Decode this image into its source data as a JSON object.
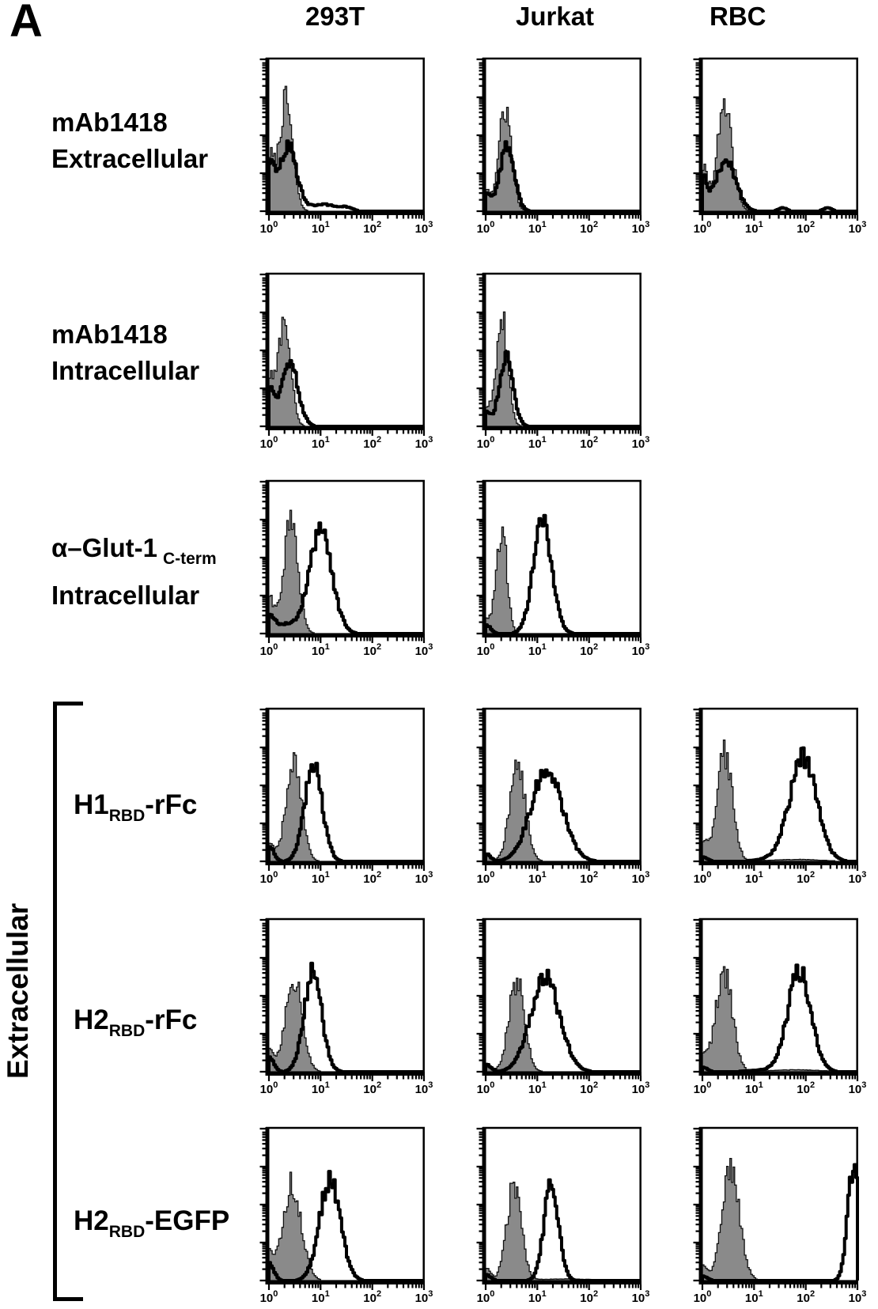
{
  "figure": {
    "panel_letter": "A"
  },
  "colors": {
    "background": "#ffffff",
    "histogram_fill": "#8a8a8a",
    "histogram_fill_edge": "#111111",
    "histogram_outline": "#000000",
    "axis": "#000000"
  },
  "chart_data": {
    "type": "flow-cytometry-histogram-grid",
    "x_scale": "log10",
    "x_range_log10": [
      0,
      3
    ],
    "x_tick_base": "10",
    "x_tick_exponents": [
      0,
      1,
      2,
      3
    ],
    "y_axis_label": "",
    "grid": false,
    "legend": "none",
    "columns": [
      "293T",
      "Jurkat",
      "RBC"
    ],
    "group_label": "Extracellular",
    "rows": [
      {
        "line1": "mAb1418",
        "line2": "Extracellular"
      },
      {
        "line1": "mAb1418",
        "line2": "Intracellular"
      },
      {
        "line1": "α–Glut-1",
        "line1_sub": "C-term",
        "line2": "Intracellular"
      },
      {
        "pre": "H1",
        "sub": "RBD",
        "post": "-rFc"
      },
      {
        "pre": "H2",
        "sub": "RBD",
        "post": "-rFc"
      },
      {
        "pre": "H2",
        "sub": "RBD",
        "post": "-EGFP"
      }
    ],
    "series_legend": {
      "filled": "shaded control histogram",
      "open": "open (bold line) stain histogram"
    },
    "panels": [
      {
        "row": 0,
        "col": 0,
        "series": [
          {
            "name": "control-shaded",
            "mu": 0.33,
            "sigma": 0.13,
            "height": 0.72,
            "edge": 0.35
          },
          {
            "name": "stain-open",
            "mu": 0.36,
            "sigma": 0.17,
            "height": 0.43,
            "edge": 0.28,
            "tails": [
              {
                "mu": 1.05,
                "sig": 0.25,
                "h": 0.045
              },
              {
                "mu": 1.5,
                "sig": 0.12,
                "h": 0.02
              }
            ]
          }
        ]
      },
      {
        "row": 0,
        "col": 1,
        "series": [
          {
            "name": "control-shaded",
            "mu": 0.38,
            "sigma": 0.12,
            "height": 0.68,
            "edge": 0.15
          },
          {
            "name": "stain-open",
            "mu": 0.41,
            "sigma": 0.14,
            "height": 0.43,
            "edge": 0.12
          }
        ]
      },
      {
        "row": 0,
        "col": 2,
        "series": [
          {
            "name": "control-shaded",
            "mu": 0.43,
            "sigma": 0.15,
            "height": 0.66,
            "edge": 0.28
          },
          {
            "name": "stain-open",
            "mu": 0.46,
            "sigma": 0.19,
            "height": 0.34,
            "edge": 0.22,
            "tails": [
              {
                "mu": 1.55,
                "sig": 0.08,
                "h": 0.022
              },
              {
                "mu": 2.42,
                "sig": 0.08,
                "h": 0.022
              }
            ]
          }
        ]
      },
      {
        "row": 1,
        "col": 0,
        "series": [
          {
            "name": "control-shaded",
            "mu": 0.3,
            "sigma": 0.12,
            "height": 0.7,
            "edge": 0.3
          },
          {
            "name": "stain-open",
            "mu": 0.4,
            "sigma": 0.16,
            "height": 0.42,
            "edge": 0.25
          }
        ]
      },
      {
        "row": 1,
        "col": 1,
        "series": [
          {
            "name": "control-shaded",
            "mu": 0.32,
            "sigma": 0.11,
            "height": 0.72,
            "edge": 0.12
          },
          {
            "name": "stain-open",
            "mu": 0.4,
            "sigma": 0.13,
            "height": 0.46,
            "edge": 0.1
          }
        ]
      },
      {
        "row": 2,
        "col": 0,
        "series": [
          {
            "name": "control-shaded",
            "mu": 0.42,
            "sigma": 0.14,
            "height": 0.72,
            "edge": 0.25
          },
          {
            "name": "stain-open",
            "mu": 1.0,
            "sigma": 0.22,
            "height": 0.66,
            "edge": 0.1,
            "tails": [
              {
                "mu": 0.3,
                "sig": 0.25,
                "h": 0.06
              }
            ]
          }
        ]
      },
      {
        "row": 2,
        "col": 1,
        "series": [
          {
            "name": "control-shaded",
            "mu": 0.31,
            "sigma": 0.1,
            "height": 0.7,
            "edge": 0.1
          },
          {
            "name": "stain-open",
            "mu": 1.1,
            "sigma": 0.18,
            "height": 0.72,
            "edge": 0.06
          }
        ]
      },
      {
        "row": 3,
        "col": 0,
        "series": [
          {
            "name": "control-shaded",
            "mu": 0.48,
            "sigma": 0.15,
            "height": 0.63,
            "edge": 0.12
          },
          {
            "name": "stain-open",
            "mu": 0.86,
            "sigma": 0.17,
            "height": 0.65,
            "edge": 0.1
          }
        ]
      },
      {
        "row": 3,
        "col": 1,
        "series": [
          {
            "name": "control-shaded",
            "mu": 0.62,
            "sigma": 0.15,
            "height": 0.62,
            "edge": 0.05
          },
          {
            "name": "stain-open",
            "mu": 1.18,
            "sigma": 0.3,
            "height": 0.6,
            "edge": 0.05
          }
        ]
      },
      {
        "row": 3,
        "col": 2,
        "series": [
          {
            "name": "control-shaded",
            "mu": 0.43,
            "sigma": 0.15,
            "height": 0.7,
            "edge": 0.12,
            "tails": [
              {
                "mu": 1.8,
                "sig": 0.5,
                "h": 0.012
              }
            ]
          },
          {
            "name": "stain-open",
            "mu": 1.95,
            "sigma": 0.26,
            "height": 0.68,
            "edge": 0.03,
            "tails": [
              {
                "mu": 1.35,
                "sig": 0.3,
                "h": 0.015
              }
            ]
          }
        ]
      },
      {
        "row": 4,
        "col": 0,
        "series": [
          {
            "name": "control-shaded",
            "mu": 0.48,
            "sigma": 0.16,
            "height": 0.63,
            "edge": 0.15
          },
          {
            "name": "stain-open",
            "mu": 0.85,
            "sigma": 0.17,
            "height": 0.65,
            "edge": 0.1
          }
        ]
      },
      {
        "row": 4,
        "col": 1,
        "series": [
          {
            "name": "control-shaded",
            "mu": 0.6,
            "sigma": 0.15,
            "height": 0.6,
            "edge": 0.05
          },
          {
            "name": "stain-open",
            "mu": 1.15,
            "sigma": 0.28,
            "height": 0.62,
            "edge": 0.05
          }
        ]
      },
      {
        "row": 4,
        "col": 2,
        "series": [
          {
            "name": "control-shaded",
            "mu": 0.42,
            "sigma": 0.16,
            "height": 0.66,
            "edge": 0.1,
            "tails": [
              {
                "mu": 1.8,
                "sig": 0.5,
                "h": 0.012
              }
            ]
          },
          {
            "name": "stain-open",
            "mu": 1.88,
            "sigma": 0.22,
            "height": 0.66,
            "edge": 0.03,
            "tails": [
              {
                "mu": 1.45,
                "sig": 0.45,
                "h": 0.015
              }
            ]
          }
        ]
      },
      {
        "row": 5,
        "col": 0,
        "series": [
          {
            "name": "control-shaded",
            "mu": 0.45,
            "sigma": 0.18,
            "height": 0.63,
            "edge": 0.18
          },
          {
            "name": "stain-open",
            "mu": 1.18,
            "sigma": 0.2,
            "height": 0.66,
            "edge": 0.12
          }
        ]
      },
      {
        "row": 5,
        "col": 1,
        "series": [
          {
            "name": "control-shaded",
            "mu": 0.55,
            "sigma": 0.14,
            "height": 0.62,
            "edge": 0.08,
            "tails": [
              {
                "mu": 1.5,
                "sig": 0.6,
                "h": 0.01
              }
            ]
          },
          {
            "name": "stain-open",
            "mu": 1.27,
            "sigma": 0.14,
            "height": 0.64,
            "edge": 0.04
          }
        ]
      },
      {
        "row": 5,
        "col": 2,
        "series": [
          {
            "name": "control-shaded",
            "mu": 0.55,
            "sigma": 0.17,
            "height": 0.72,
            "edge": 0.1
          },
          {
            "name": "stain-open",
            "mu": 2.92,
            "sigma": 0.11,
            "height": 0.73,
            "edge": 0.03
          }
        ]
      }
    ]
  }
}
